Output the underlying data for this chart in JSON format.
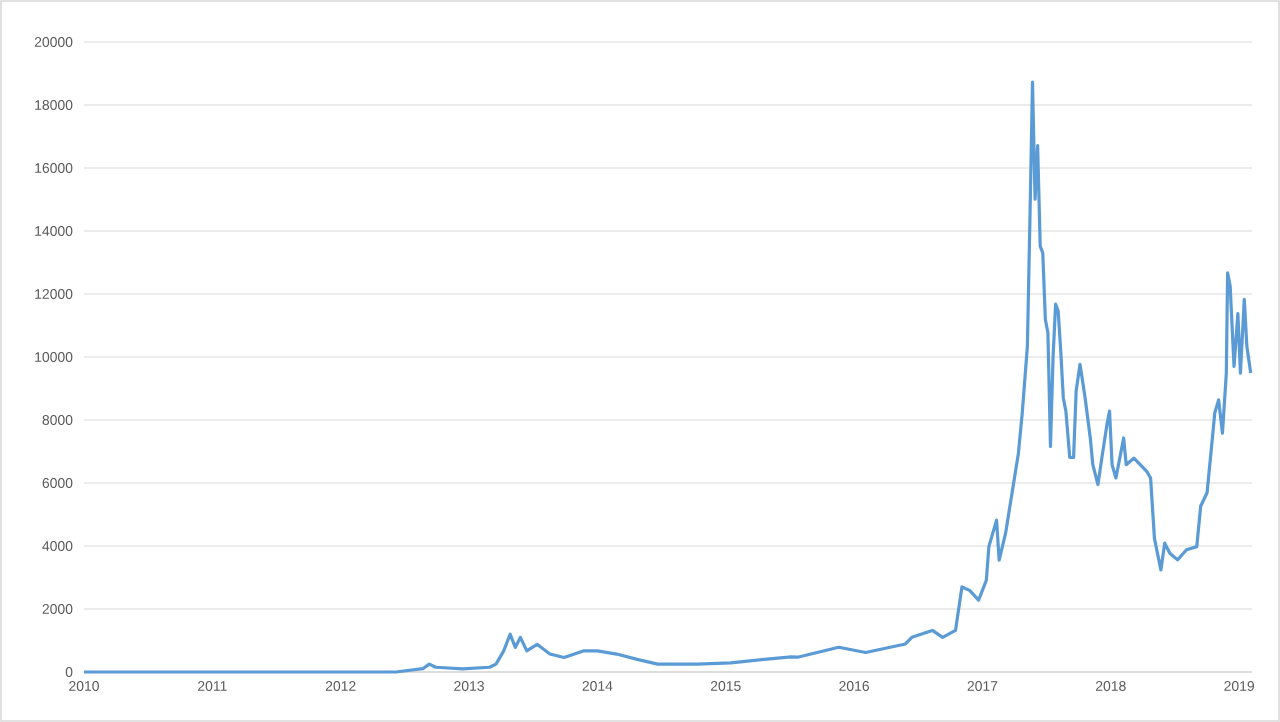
{
  "chart_data": {
    "type": "line",
    "color": "#5b9bd5",
    "grid": "y",
    "marker": "none",
    "line_style": "solid",
    "xlim": [
      2010,
      2019.1
    ],
    "xticks": [
      2010,
      2011,
      2012,
      2013,
      2014,
      2015,
      2016,
      2017,
      2018,
      2019
    ],
    "ylim": [
      0,
      20000
    ],
    "yticks": [
      0,
      2000,
      4000,
      6000,
      8000,
      10000,
      12000,
      14000,
      16000,
      18000,
      20000
    ],
    "x": [
      2010.0,
      2012.43,
      2012.64,
      2012.69,
      2012.74,
      2012.95,
      2013.16,
      2013.21,
      2013.27,
      2013.32,
      2013.36,
      2013.4,
      2013.45,
      2013.53,
      2013.63,
      2013.74,
      2013.89,
      2014.0,
      2014.15,
      2014.31,
      2014.47,
      2014.62,
      2014.78,
      2015.04,
      2015.3,
      2015.51,
      2015.56,
      2015.88,
      2016.09,
      2016.4,
      2016.45,
      2016.61,
      2016.69,
      2016.79,
      2016.84,
      2016.9,
      2016.97,
      2017.03,
      2017.05,
      2017.11,
      2017.13,
      2017.18,
      2017.23,
      2017.28,
      2017.31,
      2017.35,
      2017.37,
      2017.39,
      2017.41,
      2017.43,
      2017.45,
      2017.47,
      2017.49,
      2017.51,
      2017.53,
      2017.55,
      2017.57,
      2017.59,
      2017.61,
      2017.63,
      2017.65,
      2017.68,
      2017.71,
      2017.73,
      2017.76,
      2017.8,
      2017.84,
      2017.86,
      2017.9,
      2017.93,
      2017.97,
      2017.99,
      2018.01,
      2018.04,
      2018.07,
      2018.1,
      2018.12,
      2018.18,
      2018.28,
      2018.31,
      2018.34,
      2018.39,
      2018.42,
      2018.46,
      2018.52,
      2018.59,
      2018.67,
      2018.7,
      2018.75,
      2018.8,
      2018.81,
      2018.84,
      2018.87,
      2018.9,
      2018.91,
      2018.93,
      2018.96,
      2018.99,
      2019.01,
      2019.04,
      2019.06,
      2019.09
    ],
    "values": [
      0,
      0,
      105,
      250,
      150,
      100,
      150,
      250,
      670,
      1200,
      780,
      1100,
      670,
      880,
      570,
      460,
      670,
      670,
      570,
      400,
      250,
      250,
      250,
      290,
      400,
      480,
      470,
      785,
      620,
      890,
      1100,
      1320,
      1100,
      1320,
      2700,
      2590,
      2280,
      2910,
      3980,
      4820,
      3550,
      4400,
      5670,
      6940,
      8220,
      10340,
      14370,
      18730,
      15010,
      16710,
      13520,
      13300,
      11190,
      10770,
      7160,
      9980,
      11680,
      11460,
      10190,
      8700,
      8280,
      6810,
      6810,
      8920,
      9770,
      8700,
      7430,
      6580,
      5950,
      6790,
      7860,
      8280,
      6580,
      6160,
      6790,
      7430,
      6580,
      6790,
      6370,
      6160,
      4240,
      3240,
      4090,
      3770,
      3560,
      3880,
      3980,
      5260,
      5690,
      7790,
      8220,
      8640,
      7580,
      9490,
      12670,
      12250,
      9700,
      11380,
      9490,
      11830,
      10340,
      9490
    ]
  }
}
